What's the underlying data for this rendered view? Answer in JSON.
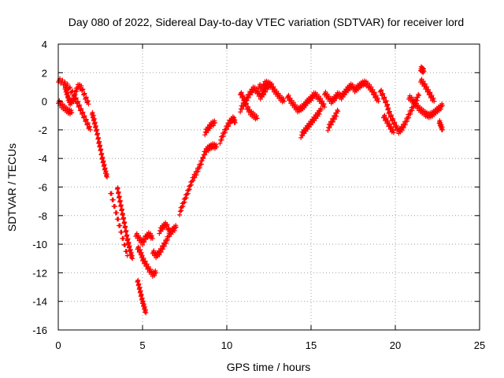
{
  "chart_data": {
    "type": "scatter",
    "title": "Day 080 of 2022, Sidereal Day-to-day VTEC variation (SDTVAR) for receiver lord",
    "xlabel": "GPS time / hours",
    "ylabel": "SDTVAR / TECUs",
    "xlim": [
      0,
      25
    ],
    "ylim": [
      -16,
      4
    ],
    "xticks": [
      0,
      5,
      10,
      15,
      20,
      25
    ],
    "yticks": [
      -16,
      -14,
      -12,
      -10,
      -8,
      -6,
      -4,
      -2,
      0,
      2,
      4
    ],
    "xtick_labels": [
      "0",
      "5",
      "10",
      "15",
      "20",
      "25"
    ],
    "ytick_labels": [
      "-16",
      "-14",
      "-12",
      "-10",
      "-8",
      "-6",
      "-4",
      "-2",
      "0",
      "2",
      "4"
    ],
    "grid": true,
    "marker": "+",
    "marker_color": "#ff0000",
    "segments": [
      [
        [
          0.0,
          1.5
        ],
        [
          0.3,
          1.3
        ],
        [
          0.6,
          1.0
        ],
        [
          0.9,
          0.5
        ],
        [
          1.1,
          0.0
        ],
        [
          1.3,
          -0.5
        ],
        [
          1.5,
          -1.0
        ],
        [
          1.7,
          -1.5
        ],
        [
          1.9,
          -2.0
        ]
      ],
      [
        [
          0.0,
          0.0
        ],
        [
          0.2,
          -0.3
        ],
        [
          0.4,
          -0.5
        ],
        [
          0.6,
          -0.7
        ],
        [
          0.8,
          -0.8
        ]
      ],
      [
        [
          0.4,
          1.0
        ],
        [
          0.5,
          0.6
        ],
        [
          0.6,
          0.2
        ],
        [
          0.7,
          -0.1
        ],
        [
          0.9,
          0.1
        ],
        [
          1.0,
          0.6
        ],
        [
          1.2,
          1.1
        ],
        [
          1.4,
          0.9
        ],
        [
          1.6,
          0.3
        ],
        [
          1.8,
          -0.2
        ]
      ],
      [
        [
          2.0,
          -0.8
        ],
        [
          2.1,
          -1.2
        ],
        [
          2.2,
          -1.7
        ],
        [
          2.3,
          -2.2
        ],
        [
          2.4,
          -2.8
        ],
        [
          2.5,
          -3.3
        ],
        [
          2.6,
          -3.9
        ],
        [
          2.7,
          -4.4
        ],
        [
          2.8,
          -4.9
        ],
        [
          2.9,
          -5.3
        ]
      ],
      [
        [
          3.5,
          -6.0
        ],
        [
          3.6,
          -6.6
        ],
        [
          3.7,
          -7.2
        ],
        [
          3.8,
          -7.8
        ],
        [
          3.9,
          -8.4
        ],
        [
          4.0,
          -9.0
        ],
        [
          4.1,
          -9.6
        ],
        [
          4.2,
          -10.1
        ],
        [
          4.3,
          -10.6
        ],
        [
          4.4,
          -11.0
        ]
      ],
      [
        [
          3.1,
          -6.3
        ],
        [
          3.3,
          -7.2
        ],
        [
          3.5,
          -8.1
        ],
        [
          3.7,
          -9.0
        ],
        [
          3.9,
          -9.9
        ],
        [
          4.1,
          -10.8
        ]
      ],
      [
        [
          4.6,
          -9.3
        ],
        [
          4.8,
          -9.6
        ],
        [
          5.0,
          -9.9
        ],
        [
          5.2,
          -9.5
        ],
        [
          5.4,
          -9.3
        ],
        [
          5.6,
          -9.6
        ]
      ],
      [
        [
          4.7,
          -10.2
        ],
        [
          4.9,
          -10.6
        ],
        [
          5.0,
          -11.0
        ],
        [
          5.2,
          -11.4
        ],
        [
          5.4,
          -11.8
        ],
        [
          5.6,
          -12.1
        ],
        [
          5.8,
          -12.0
        ]
      ],
      [
        [
          4.7,
          -12.5
        ],
        [
          4.8,
          -13.0
        ],
        [
          4.9,
          -13.5
        ],
        [
          5.0,
          -14.0
        ],
        [
          5.1,
          -14.4
        ],
        [
          5.2,
          -14.8
        ]
      ],
      [
        [
          5.6,
          -10.5
        ],
        [
          5.8,
          -10.8
        ],
        [
          6.0,
          -10.6
        ],
        [
          6.2,
          -10.2
        ],
        [
          6.4,
          -9.8
        ],
        [
          6.6,
          -9.3
        ],
        [
          6.8,
          -9.0
        ],
        [
          7.0,
          -8.8
        ]
      ],
      [
        [
          6.0,
          -9.1
        ],
        [
          6.2,
          -8.8
        ],
        [
          6.4,
          -8.6
        ],
        [
          6.6,
          -9.1
        ]
      ],
      [
        [
          7.2,
          -7.8
        ],
        [
          7.4,
          -7.2
        ],
        [
          7.6,
          -6.6
        ],
        [
          7.8,
          -6.0
        ],
        [
          8.0,
          -5.4
        ],
        [
          8.2,
          -5.0
        ],
        [
          8.4,
          -4.5
        ],
        [
          8.6,
          -4.0
        ]
      ],
      [
        [
          8.6,
          -3.8
        ],
        [
          8.8,
          -3.4
        ],
        [
          9.0,
          -3.2
        ],
        [
          9.2,
          -3.1
        ],
        [
          9.4,
          -3.2
        ]
      ],
      [
        [
          8.7,
          -2.2
        ],
        [
          8.9,
          -1.9
        ],
        [
          9.1,
          -1.6
        ],
        [
          9.3,
          -1.5
        ]
      ],
      [
        [
          9.6,
          -2.8
        ],
        [
          9.8,
          -2.3
        ],
        [
          10.0,
          -1.8
        ],
        [
          10.2,
          -1.4
        ],
        [
          10.4,
          -1.2
        ],
        [
          10.5,
          -1.5
        ]
      ],
      [
        [
          10.8,
          -0.6
        ],
        [
          11.0,
          -0.2
        ],
        [
          11.2,
          0.2
        ],
        [
          11.4,
          0.6
        ],
        [
          11.6,
          0.9
        ],
        [
          11.8,
          0.7
        ],
        [
          12.0,
          0.3
        ],
        [
          12.2,
          0.6
        ],
        [
          12.4,
          1.0
        ],
        [
          12.6,
          1.2
        ],
        [
          12.8,
          0.8
        ],
        [
          13.0,
          0.5
        ],
        [
          13.2,
          0.2
        ],
        [
          13.4,
          0.0
        ]
      ],
      [
        [
          10.8,
          0.6
        ],
        [
          11.0,
          0.2
        ],
        [
          11.2,
          -0.4
        ],
        [
          11.4,
          -0.8
        ],
        [
          11.6,
          -1.0
        ],
        [
          11.8,
          -1.2
        ]
      ],
      [
        [
          11.9,
          1.1
        ],
        [
          12.1,
          0.9
        ],
        [
          12.3,
          1.3
        ],
        [
          12.5,
          1.2
        ]
      ],
      [
        [
          13.6,
          0.4
        ],
        [
          13.8,
          0.0
        ],
        [
          14.0,
          -0.3
        ],
        [
          14.2,
          -0.6
        ],
        [
          14.4,
          -0.5
        ],
        [
          14.6,
          -0.3
        ],
        [
          14.8,
          0.0
        ],
        [
          15.0,
          0.2
        ],
        [
          15.2,
          0.5
        ],
        [
          15.4,
          0.3
        ],
        [
          15.6,
          0.0
        ],
        [
          15.8,
          -0.4
        ]
      ],
      [
        [
          14.4,
          -2.4
        ],
        [
          14.6,
          -2.1
        ],
        [
          14.8,
          -1.8
        ],
        [
          15.0,
          -1.5
        ],
        [
          15.2,
          -1.2
        ],
        [
          15.4,
          -0.9
        ],
        [
          15.6,
          -0.6
        ]
      ],
      [
        [
          15.8,
          0.6
        ],
        [
          16.0,
          0.3
        ],
        [
          16.2,
          0.0
        ],
        [
          16.4,
          0.2
        ],
        [
          16.6,
          0.5
        ],
        [
          16.8,
          0.3
        ],
        [
          17.0,
          0.6
        ],
        [
          17.2,
          0.9
        ],
        [
          17.4,
          1.1
        ],
        [
          17.6,
          0.8
        ],
        [
          17.8,
          1.0
        ],
        [
          18.0,
          1.2
        ],
        [
          18.2,
          1.3
        ],
        [
          18.4,
          1.1
        ],
        [
          18.6,
          0.8
        ],
        [
          18.8,
          0.4
        ],
        [
          19.0,
          0.0
        ]
      ],
      [
        [
          16.0,
          -1.9
        ],
        [
          16.2,
          -1.5
        ],
        [
          16.4,
          -1.1
        ],
        [
          16.6,
          -0.7
        ]
      ],
      [
        [
          19.1,
          0.8
        ],
        [
          19.3,
          0.3
        ],
        [
          19.5,
          -0.2
        ],
        [
          19.6,
          -0.7
        ],
        [
          19.8,
          -1.2
        ],
        [
          20.0,
          -1.7
        ],
        [
          20.2,
          -2.1
        ],
        [
          20.4,
          -1.9
        ],
        [
          20.6,
          -1.5
        ],
        [
          20.8,
          -1.0
        ],
        [
          21.0,
          -0.5
        ],
        [
          21.2,
          0.0
        ],
        [
          21.4,
          0.4
        ]
      ],
      [
        [
          19.3,
          -1.0
        ],
        [
          19.5,
          -1.4
        ],
        [
          19.7,
          -1.8
        ],
        [
          19.9,
          -2.2
        ]
      ],
      [
        [
          20.8,
          0.3
        ],
        [
          21.0,
          0.1
        ],
        [
          21.2,
          -0.2
        ],
        [
          21.4,
          -0.5
        ],
        [
          21.6,
          -0.7
        ],
        [
          21.8,
          -0.9
        ],
        [
          22.0,
          -1.0
        ],
        [
          22.2,
          -0.9
        ],
        [
          22.4,
          -0.7
        ],
        [
          22.6,
          -0.5
        ],
        [
          22.8,
          -0.3
        ]
      ],
      [
        [
          21.5,
          1.5
        ],
        [
          21.7,
          1.2
        ],
        [
          21.9,
          0.8
        ],
        [
          22.1,
          0.4
        ],
        [
          22.3,
          0.0
        ]
      ],
      [
        [
          21.5,
          2.3
        ],
        [
          21.6,
          2.2
        ],
        [
          21.7,
          2.1
        ]
      ],
      [
        [
          22.6,
          -1.4
        ],
        [
          22.7,
          -1.7
        ],
        [
          22.8,
          -2.0
        ]
      ]
    ]
  }
}
